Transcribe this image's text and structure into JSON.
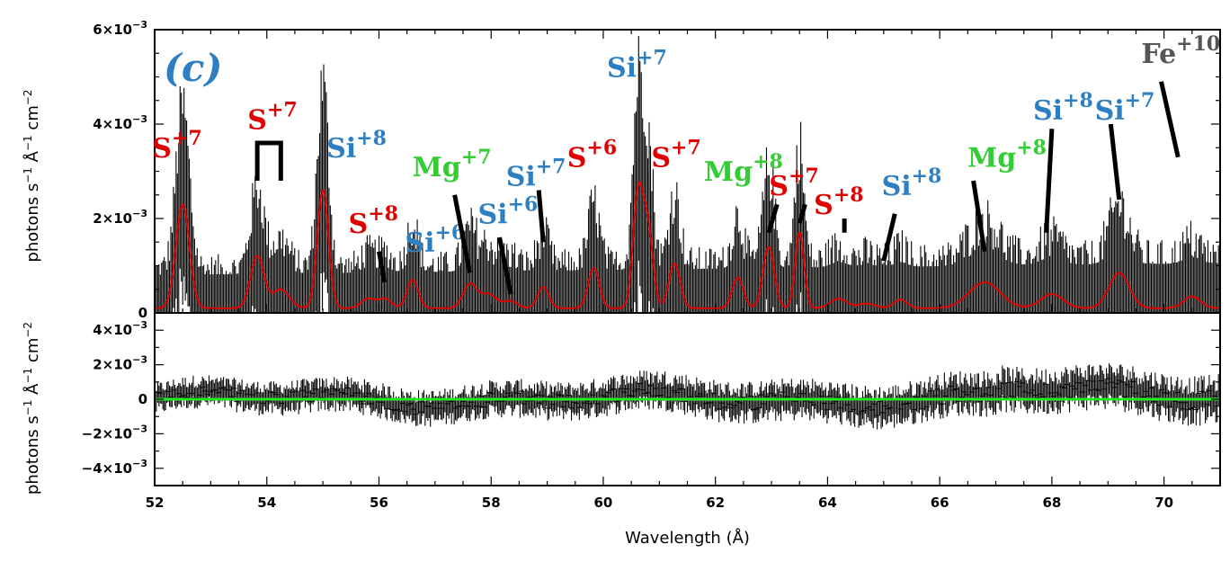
{
  "chart_data": {
    "type": "line",
    "panel_label": "(c)",
    "xlabel": "Wavelength (Å)",
    "xlim": [
      52,
      71
    ],
    "x_ticks": [
      52,
      54,
      56,
      58,
      60,
      62,
      64,
      66,
      68,
      70
    ],
    "x_tick_labels": [
      "52",
      "54",
      "56",
      "58",
      "60",
      "62",
      "64",
      "66",
      "68",
      "70"
    ],
    "colors": {
      "model": "#e00000",
      "residual_zero": "#22ee22",
      "data": "#000000",
      "si": "#2d7fc2",
      "s": "#e00000",
      "mg": "#33cc33",
      "fe": "#555555"
    },
    "top_panel": {
      "ylabel_parts": [
        "photons s",
        "−1",
        " Å",
        "−1",
        " cm",
        "−2"
      ],
      "ylim": [
        0,
        0.006
      ],
      "y_ticks": [
        0,
        0.002,
        0.004,
        0.006
      ],
      "y_tick_labels": [
        {
          "base": "0",
          "exp": ""
        },
        {
          "base": "2×10",
          "exp": "−3"
        },
        {
          "base": "4×10",
          "exp": "−3"
        },
        {
          "base": "6×10",
          "exp": "−3"
        }
      ],
      "model_peaks": [
        {
          "center": 52.5,
          "height": 0.0022,
          "width": 0.12
        },
        {
          "center": 53.83,
          "height": 0.0011,
          "width": 0.12
        },
        {
          "center": 54.25,
          "height": 0.0004,
          "width": 0.15
        },
        {
          "center": 55.0,
          "height": 0.0025,
          "width": 0.1
        },
        {
          "center": 55.8,
          "height": 0.0002,
          "width": 0.12
        },
        {
          "center": 56.1,
          "height": 0.0002,
          "width": 0.12
        },
        {
          "center": 56.6,
          "height": 0.0006,
          "width": 0.1
        },
        {
          "center": 57.62,
          "height": 0.0005,
          "width": 0.12
        },
        {
          "center": 57.95,
          "height": 0.0003,
          "width": 0.15
        },
        {
          "center": 58.35,
          "height": 0.00015,
          "width": 0.12
        },
        {
          "center": 58.93,
          "height": 0.00045,
          "width": 0.1
        },
        {
          "center": 59.83,
          "height": 0.00085,
          "width": 0.1
        },
        {
          "center": 60.62,
          "height": 0.0024,
          "width": 0.09
        },
        {
          "center": 60.8,
          "height": 0.0016,
          "width": 0.09
        },
        {
          "center": 61.27,
          "height": 0.00095,
          "width": 0.1
        },
        {
          "center": 62.4,
          "height": 0.00065,
          "width": 0.1
        },
        {
          "center": 62.95,
          "height": 0.0013,
          "width": 0.1
        },
        {
          "center": 63.5,
          "height": 0.0016,
          "width": 0.08
        },
        {
          "center": 64.2,
          "height": 0.0002,
          "width": 0.15
        },
        {
          "center": 64.7,
          "height": 0.0001,
          "width": 0.15
        },
        {
          "center": 65.3,
          "height": 0.00018,
          "width": 0.12
        },
        {
          "center": 66.8,
          "height": 0.00055,
          "width": 0.28
        },
        {
          "center": 68.0,
          "height": 0.0003,
          "width": 0.2
        },
        {
          "center": 69.2,
          "height": 0.00075,
          "width": 0.18
        },
        {
          "center": 70.5,
          "height": 0.00025,
          "width": 0.15
        }
      ],
      "model_baseline": 0.0001
    },
    "bottom_panel": {
      "ylabel_parts": [
        "photons s",
        "−1",
        " Å",
        "−1",
        " cm",
        "−2"
      ],
      "ylim": [
        -0.005,
        0.005
      ],
      "y_ticks": [
        -0.004,
        -0.002,
        0,
        0.002,
        0.004
      ],
      "y_tick_labels": [
        {
          "base": "−4×10",
          "exp": "−3"
        },
        {
          "base": "−2×10",
          "exp": "−3"
        },
        {
          "base": "0",
          "exp": ""
        },
        {
          "base": "2×10",
          "exp": "−3"
        },
        {
          "base": "4×10",
          "exp": "−3"
        }
      ],
      "zero_line": 0
    },
    "annotations": [
      {
        "ion": "S",
        "charge": "+7",
        "color": "s",
        "label_x": 52.4,
        "label_y": 0.0033,
        "line": [
          52.4,
          0.0029,
          52.4,
          0.0029
        ]
      },
      {
        "ion": "S",
        "charge": "+7",
        "color": "s",
        "label_x": 54.1,
        "label_y": 0.0039,
        "bracket": [
          53.83,
          54.25,
          0.0036,
          0.0028
        ]
      },
      {
        "ion": "Si",
        "charge": "+8",
        "color": "si",
        "label_x": 55.6,
        "label_y": 0.0033
      },
      {
        "ion": "S",
        "charge": "+8",
        "color": "s",
        "label_x": 55.9,
        "label_y": 0.0017,
        "line": [
          56.0,
          0.0013,
          56.1,
          0.00065
        ]
      },
      {
        "ion": "Si",
        "charge": "+6",
        "color": "si",
        "label_x": 57.0,
        "label_y": 0.0013
      },
      {
        "ion": "Mg",
        "charge": "+7",
        "color": "mg",
        "label_x": 57.3,
        "label_y": 0.0029,
        "line": [
          57.35,
          0.0025,
          57.62,
          0.00085
        ]
      },
      {
        "ion": "Si",
        "charge": "+6",
        "color": "si",
        "label_x": 58.3,
        "label_y": 0.0019,
        "line": [
          58.15,
          0.0016,
          58.35,
          0.0004
        ]
      },
      {
        "ion": "Si",
        "charge": "+7",
        "color": "si",
        "label_x": 58.8,
        "label_y": 0.0027,
        "line": [
          58.85,
          0.0026,
          58.93,
          0.0015
        ]
      },
      {
        "ion": "S",
        "charge": "+6",
        "color": "s",
        "label_x": 59.8,
        "label_y": 0.0031
      },
      {
        "ion": "Si",
        "charge": "+7",
        "color": "si",
        "label_x": 60.6,
        "label_y": 0.005
      },
      {
        "ion": "S",
        "charge": "+7",
        "color": "s",
        "label_x": 61.3,
        "label_y": 0.0031
      },
      {
        "ion": "Mg",
        "charge": "+8",
        "color": "mg",
        "label_x": 62.5,
        "label_y": 0.0028
      },
      {
        "ion": "S",
        "charge": "+7",
        "color": "s",
        "label_x": 63.4,
        "label_y": 0.0025,
        "line": [
          63.1,
          0.0023,
          62.95,
          0.0017
        ],
        "line2": [
          63.6,
          0.0023,
          63.5,
          0.0019
        ]
      },
      {
        "ion": "S",
        "charge": "+8",
        "color": "s",
        "label_x": 64.2,
        "label_y": 0.0021,
        "line": [
          64.3,
          0.002,
          64.3,
          0.0017
        ]
      },
      {
        "ion": "Si",
        "charge": "+8",
        "color": "si",
        "label_x": 65.5,
        "label_y": 0.0025,
        "line": [
          65.2,
          0.0021,
          65.0,
          0.0011
        ]
      },
      {
        "ion": "Mg",
        "charge": "+8",
        "color": "mg",
        "label_x": 67.2,
        "label_y": 0.0031,
        "line": [
          66.6,
          0.0028,
          66.8,
          0.0013
        ]
      },
      {
        "ion": "Si",
        "charge": "+8",
        "color": "si",
        "label_x": 68.2,
        "label_y": 0.0041,
        "line": [
          68.0,
          0.0039,
          67.9,
          0.0017
        ]
      },
      {
        "ion": "Si",
        "charge": "+7",
        "color": "si",
        "label_x": 69.3,
        "label_y": 0.0041,
        "line": [
          69.05,
          0.004,
          69.2,
          0.0024
        ]
      },
      {
        "ion": "Fe",
        "charge": "+10",
        "color": "fe",
        "label_x": 70.3,
        "label_y": 0.0053,
        "line": [
          69.95,
          0.0049,
          70.25,
          0.0033
        ]
      }
    ]
  }
}
